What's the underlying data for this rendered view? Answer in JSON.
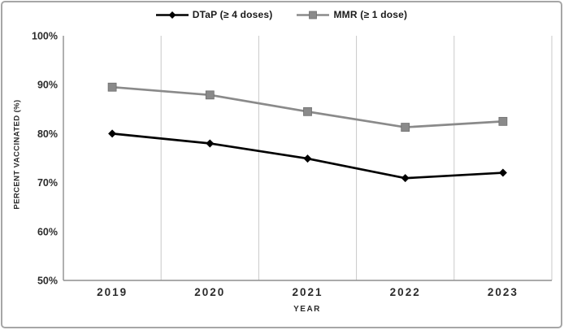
{
  "chart_data": {
    "type": "line",
    "title": "",
    "xlabel": "YEAR",
    "ylabel": "PERCENT VACCINATED (%)",
    "categories": [
      "2019",
      "2020",
      "2021",
      "2022",
      "2023"
    ],
    "series": [
      {
        "name": "DTaP (≥ 4 doses)",
        "marker": "diamond",
        "color": "#000000",
        "values": [
          80.0,
          78.0,
          74.9,
          70.9,
          72.0
        ]
      },
      {
        "name": "MMR (≥ 1 dose)",
        "marker": "square",
        "color": "#8a8a8a",
        "values": [
          89.5,
          87.9,
          84.5,
          81.3,
          82.5
        ]
      }
    ],
    "ylim": [
      50,
      100
    ],
    "y_tick_step": 10,
    "y_tick_labels": [
      "50%",
      "60%",
      "70%",
      "80%",
      "90%",
      "100%"
    ],
    "grid": "vertical",
    "legend_position": "top-center",
    "grid_color": "#c9c9c9",
    "axis_color": "#8f8f8f",
    "tick_text_color": "#2b2b2b",
    "border_color": "#a6a6a6"
  }
}
